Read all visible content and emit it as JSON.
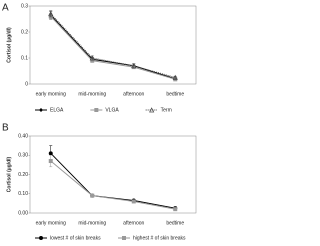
{
  "chart_data": [
    {
      "type": "line",
      "panel": "A",
      "y_label": "Cortisol (µg/dl)",
      "categories": [
        "early morning",
        "mid-morning",
        "afternoon",
        "bedtime"
      ],
      "ylim": [
        0,
        0.3
      ],
      "yticks": [
        0,
        0.1,
        0.2,
        0.3
      ],
      "series": [
        {
          "name": "ELGA",
          "color": "#000000",
          "marker": "diamond",
          "line_style": "solid",
          "values": [
            0.265,
            0.095,
            0.07,
            0.02
          ],
          "errors": [
            0.015,
            0.008,
            0.007,
            0.004
          ]
        },
        {
          "name": "VLGA",
          "color": "#999999",
          "marker": "square",
          "line_style": "solid",
          "values": [
            0.26,
            0.09,
            0.065,
            0.018
          ],
          "errors": [
            0.012,
            0.007,
            0.006,
            0.004
          ]
        },
        {
          "name": "Term",
          "color": "#444444",
          "marker": "triangle",
          "line_style": "dotted",
          "values": [
            0.27,
            0.1,
            0.07,
            0.025
          ],
          "errors": [
            0.012,
            0.008,
            0.008,
            0.005
          ]
        }
      ]
    },
    {
      "type": "line",
      "panel": "B",
      "y_label": "Cortisol (µg/dl)",
      "categories": [
        "early morning",
        "mid-morning",
        "afternoon",
        "bedtime"
      ],
      "ylim": [
        0,
        0.4
      ],
      "yticks": [
        {
          "value": 0,
          "label": "0.00"
        },
        {
          "value": 0.1,
          "label": "0.10"
        },
        {
          "value": 0.2,
          "label": "0.20"
        },
        {
          "value": 0.3,
          "label": "0.30"
        },
        {
          "value": 0.4,
          "label": "0.40"
        }
      ],
      "series": [
        {
          "name": "lowest # of skin breaks",
          "color": "#000000",
          "marker": "circle",
          "line_style": "solid",
          "values": [
            0.31,
            0.09,
            0.065,
            0.025
          ],
          "errors": [
            0.04,
            0.005,
            0.005,
            0.008
          ]
        },
        {
          "name": "highest # of skin breaks",
          "color": "#999999",
          "marker": "square",
          "line_style": "solid",
          "values": [
            0.27,
            0.09,
            0.06,
            0.02
          ],
          "errors": [
            0.03,
            0.005,
            0.005,
            0.006
          ]
        }
      ]
    }
  ]
}
